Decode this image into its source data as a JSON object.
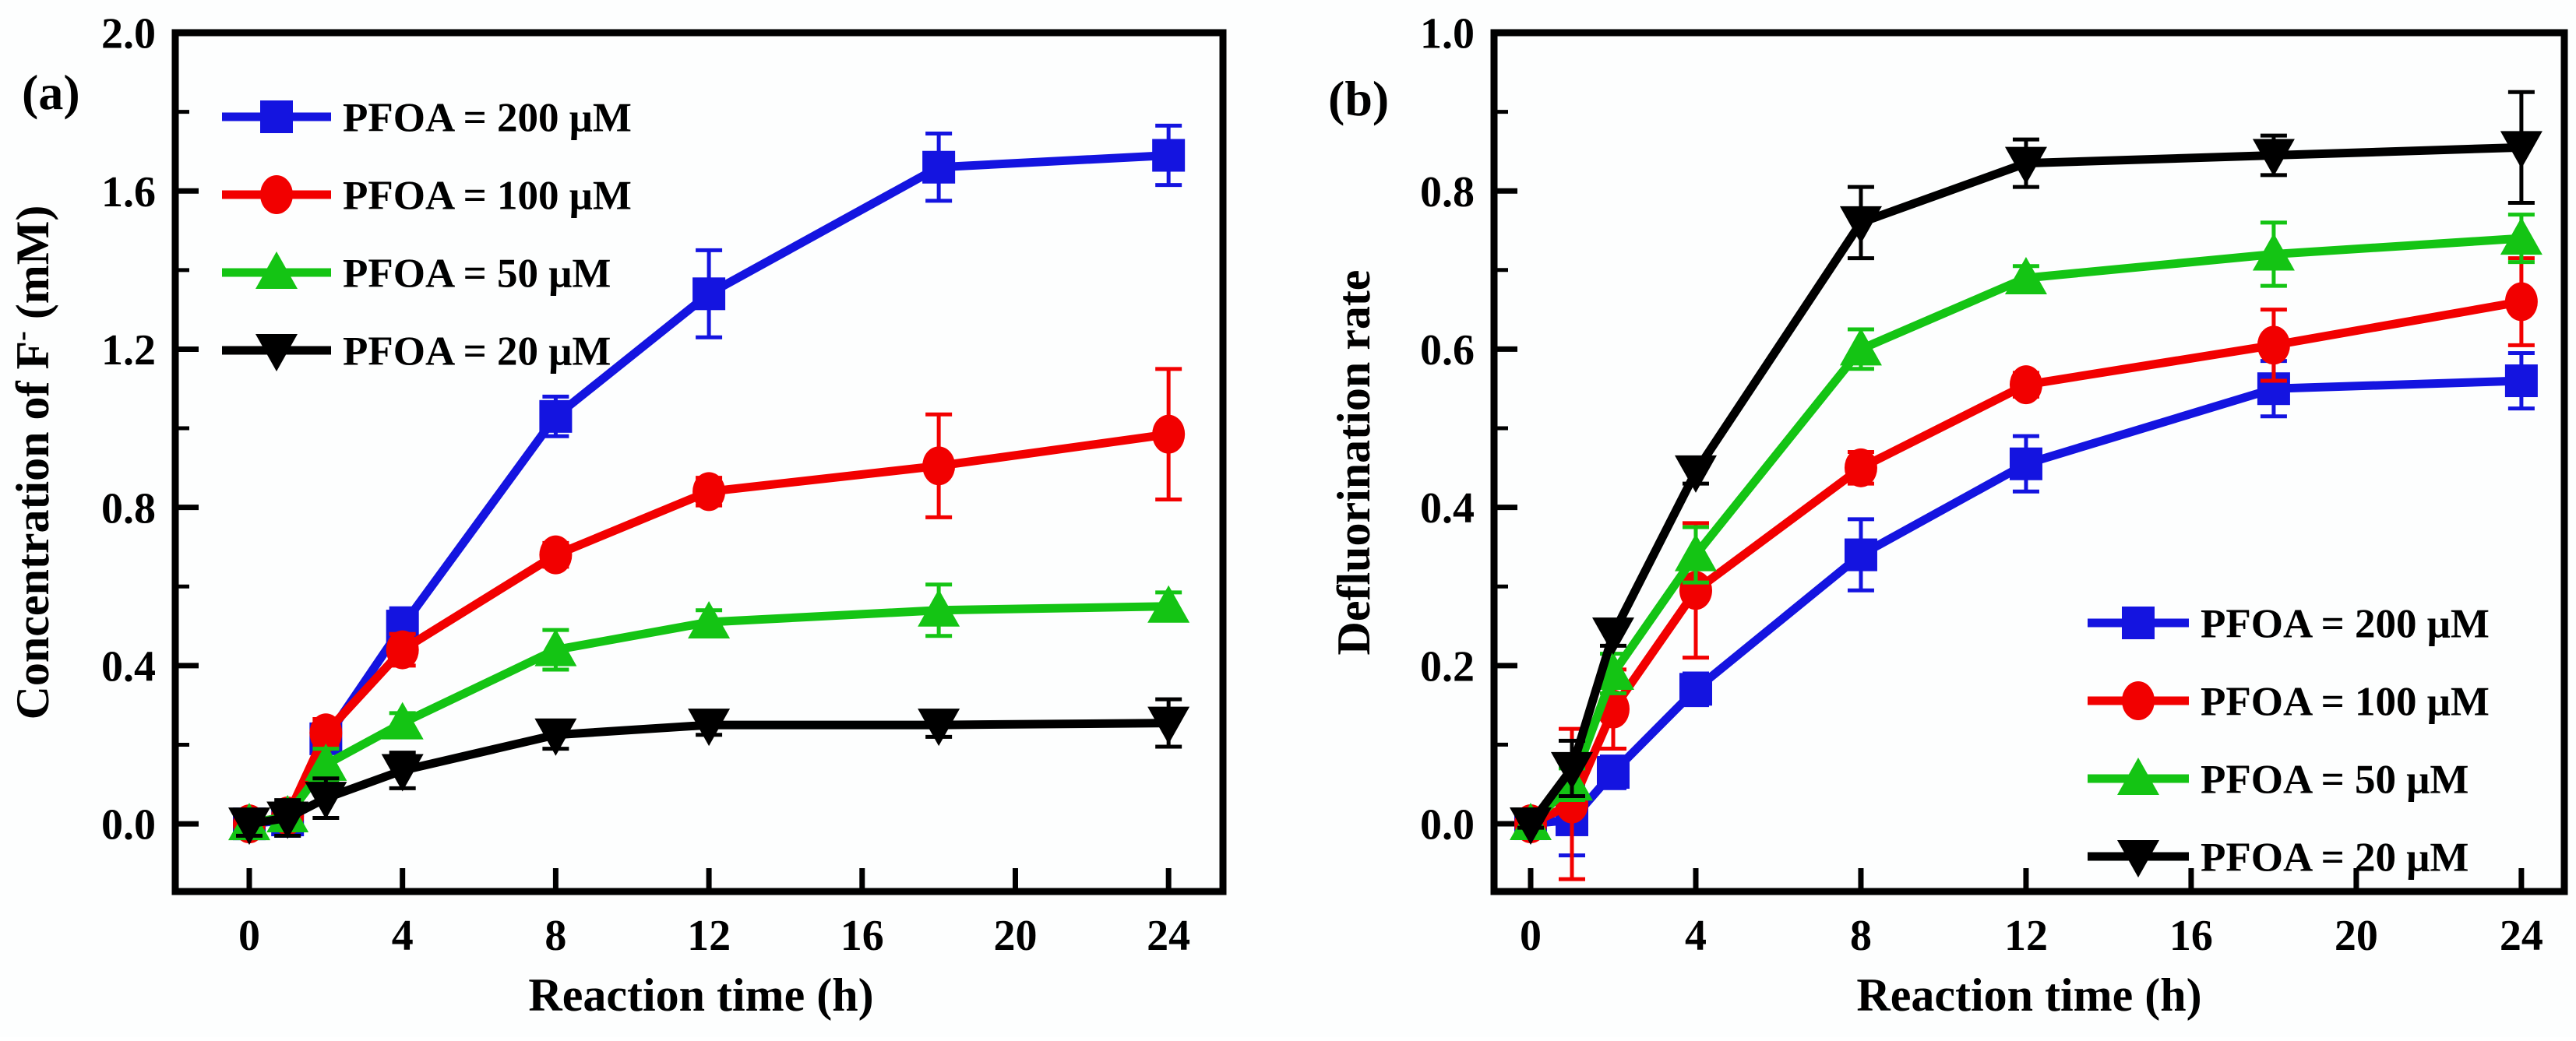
{
  "figure": {
    "background": "#FDFEFE",
    "frame_color": "#000000",
    "text_color": "#000000"
  },
  "chart_data": [
    {
      "type": "line",
      "panel_label": "(a)",
      "xlabel": "Reaction time (h)",
      "ylabel_parts": [
        {
          "t": "Concentration of F"
        },
        {
          "t": "-",
          "sup": true
        },
        {
          "t": " (mM)"
        }
      ],
      "x": [
        0,
        1,
        2,
        4,
        8,
        12,
        18,
        24
      ],
      "xlim": [
        -1.932,
        25.42
      ],
      "ylim": [
        -0.171,
        2.0
      ],
      "xticks": {
        "values": [
          0,
          4,
          8,
          12,
          16,
          20,
          24
        ],
        "labels": [
          "0",
          "4",
          "8",
          "12",
          "16",
          "20",
          "24"
        ]
      },
      "yticks": {
        "major": [
          0.0,
          0.4,
          0.8,
          1.2,
          1.6,
          2.0
        ],
        "labels": [
          "0.0",
          "0.4",
          "0.8",
          "1.2",
          "1.6",
          "2.0"
        ],
        "minor": [
          0.2,
          0.6,
          1.0,
          1.4,
          1.8
        ]
      },
      "grid": false,
      "legend_position": "upper-left",
      "series": [
        {
          "name": "PFOA = 200 μM",
          "color": "#1414E0",
          "marker": "square",
          "values": [
            0.0,
            0.01,
            0.215,
            0.5,
            1.03,
            1.34,
            1.66,
            1.69
          ],
          "errors": [
            0.015,
            0.04,
            0.03,
            0.045,
            0.05,
            0.11,
            0.085,
            0.075
          ]
        },
        {
          "name": "PFOA = 100 μM",
          "color": "#F20000",
          "marker": "circle",
          "values": [
            0.0,
            0.02,
            0.23,
            0.44,
            0.68,
            0.84,
            0.905,
            0.985
          ],
          "errors": [
            0.015,
            0.03,
            0.035,
            0.04,
            0.03,
            0.035,
            0.13,
            0.165
          ]
        },
        {
          "name": "PFOA = 50 μM",
          "color": "#14C414",
          "marker": "triangle-up",
          "values": [
            0.0,
            0.02,
            0.15,
            0.255,
            0.44,
            0.51,
            0.54,
            0.55
          ],
          "errors": [
            0.015,
            0.03,
            0.04,
            0.025,
            0.05,
            0.03,
            0.065,
            0.035
          ]
        },
        {
          "name": "PFOA = 20 μM",
          "color": "#000000",
          "marker": "triangle-down",
          "values": [
            0.0,
            0.015,
            0.065,
            0.135,
            0.225,
            0.25,
            0.25,
            0.255
          ],
          "errors": [
            0.03,
            0.045,
            0.05,
            0.045,
            0.035,
            0.025,
            0.03,
            0.06
          ]
        }
      ]
    },
    {
      "type": "line",
      "panel_label": "(b)",
      "xlabel": "Reaction time (h)",
      "ylabel_parts": [
        {
          "t": "Defluorination rate"
        }
      ],
      "x": [
        0,
        1,
        2,
        4,
        8,
        12,
        18,
        24
      ],
      "xlim": [
        -0.887,
        25.04
      ],
      "ylim": [
        -0.0856,
        1.0
      ],
      "xticks": {
        "values": [
          0,
          4,
          8,
          12,
          16,
          20,
          24
        ],
        "labels": [
          "0",
          "4",
          "8",
          "12",
          "16",
          "20",
          "24"
        ]
      },
      "yticks": {
        "major": [
          0.0,
          0.2,
          0.4,
          0.6,
          0.8,
          1.0
        ],
        "labels": [
          "0.0",
          "0.2",
          "0.4",
          "0.6",
          "0.8",
          "1.0"
        ],
        "minor": [
          0.1,
          0.3,
          0.5,
          0.7,
          0.9
        ]
      },
      "grid": false,
      "legend_position": "lower-right",
      "series": [
        {
          "name": "PFOA = 200 μM",
          "color": "#1414E0",
          "marker": "square",
          "values": [
            0.0,
            0.005,
            0.065,
            0.17,
            0.34,
            0.455,
            0.55,
            0.56
          ],
          "errors": [
            0.005,
            0.045,
            0.02,
            0.02,
            0.045,
            0.035,
            0.035,
            0.035
          ]
        },
        {
          "name": "PFOA = 100 μM",
          "color": "#F20000",
          "marker": "circle",
          "values": [
            0.0,
            0.025,
            0.145,
            0.295,
            0.45,
            0.555,
            0.605,
            0.66
          ],
          "errors": [
            0.005,
            0.095,
            0.05,
            0.085,
            0.02,
            0.015,
            0.045,
            0.055
          ]
        },
        {
          "name": "PFOA = 50 μM",
          "color": "#14C414",
          "marker": "triangle-up",
          "values": [
            0.0,
            0.05,
            0.19,
            0.34,
            0.6,
            0.69,
            0.72,
            0.74
          ],
          "errors": [
            0.005,
            0.02,
            0.025,
            0.035,
            0.025,
            0.015,
            0.04,
            0.03
          ]
        },
        {
          "name": "PFOA = 20 μM",
          "color": "#000000",
          "marker": "triangle-down",
          "values": [
            0.0,
            0.07,
            0.24,
            0.445,
            0.76,
            0.835,
            0.845,
            0.855
          ],
          "errors": [
            0.005,
            0.035,
            0.015,
            0.015,
            0.045,
            0.03,
            0.025,
            0.07
          ]
        }
      ]
    }
  ]
}
